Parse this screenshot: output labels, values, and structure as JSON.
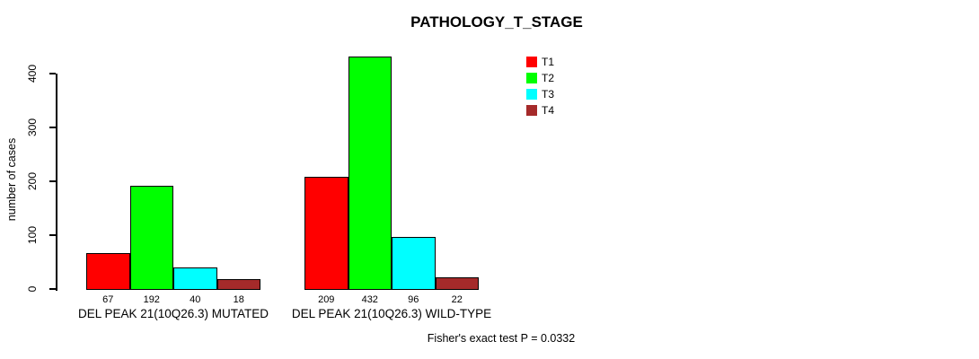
{
  "chart_data": {
    "type": "bar",
    "title": "PATHOLOGY_T_STAGE",
    "ylabel": "number of cases",
    "xlabel": "",
    "ylim": [
      0,
      440
    ],
    "yticks": [
      0,
      100,
      200,
      300,
      400
    ],
    "grid": false,
    "legend_position": "top-right",
    "categories": [
      "DEL PEAK 21(10Q26.3) MUTATED",
      "DEL PEAK 21(10Q26.3) WILD-TYPE"
    ],
    "series": [
      {
        "name": "T1",
        "color": "#ff0000",
        "values": [
          67,
          209
        ]
      },
      {
        "name": "T2",
        "color": "#00ff00",
        "values": [
          192,
          432
        ]
      },
      {
        "name": "T3",
        "color": "#00ffff",
        "values": [
          40,
          96
        ]
      },
      {
        "name": "T4",
        "color": "#a52a2a",
        "values": [
          18,
          22
        ]
      }
    ],
    "bar_value_labels": true,
    "annotation": "Fisher's exact test P = 0.0332",
    "axis_color": "#000000",
    "background_color": "#ffffff"
  }
}
